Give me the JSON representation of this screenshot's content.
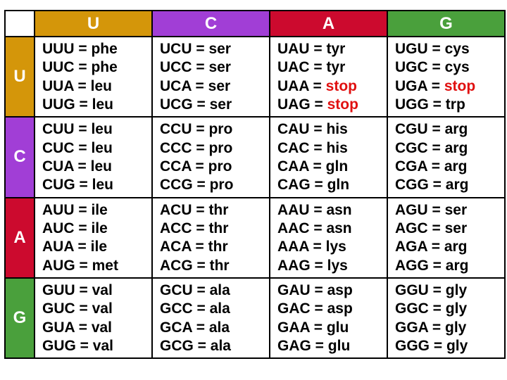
{
  "colors": {
    "U": "#d4960a",
    "C": "#a13ed6",
    "A": "#cc0a2e",
    "G": "#4aa03c",
    "stop": "#e01010"
  },
  "columns": [
    "U",
    "C",
    "A",
    "G"
  ],
  "rows": [
    "U",
    "C",
    "A",
    "G"
  ],
  "blocks": [
    [
      [
        {
          "codon": "UUU",
          "aa": "phe"
        },
        {
          "codon": "UUC",
          "aa": "phe"
        },
        {
          "codon": "UUA",
          "aa": "leu"
        },
        {
          "codon": "UUG",
          "aa": "leu"
        }
      ],
      [
        {
          "codon": "UCU",
          "aa": "ser"
        },
        {
          "codon": "UCC",
          "aa": "ser"
        },
        {
          "codon": "UCA",
          "aa": "ser"
        },
        {
          "codon": "UCG",
          "aa": "ser"
        }
      ],
      [
        {
          "codon": "UAU",
          "aa": "tyr"
        },
        {
          "codon": "UAC",
          "aa": "tyr"
        },
        {
          "codon": "UAA",
          "aa": "stop"
        },
        {
          "codon": "UAG",
          "aa": "stop"
        }
      ],
      [
        {
          "codon": "UGU",
          "aa": "cys"
        },
        {
          "codon": "UGC",
          "aa": "cys"
        },
        {
          "codon": "UGA",
          "aa": "stop"
        },
        {
          "codon": "UGG",
          "aa": "trp"
        }
      ]
    ],
    [
      [
        {
          "codon": "CUU",
          "aa": "leu"
        },
        {
          "codon": "CUC",
          "aa": "leu"
        },
        {
          "codon": "CUA",
          "aa": "leu"
        },
        {
          "codon": "CUG",
          "aa": "leu"
        }
      ],
      [
        {
          "codon": "CCU",
          "aa": "pro"
        },
        {
          "codon": "CCC",
          "aa": "pro"
        },
        {
          "codon": "CCA",
          "aa": "pro"
        },
        {
          "codon": "CCG",
          "aa": "pro"
        }
      ],
      [
        {
          "codon": "CAU",
          "aa": "his"
        },
        {
          "codon": "CAC",
          "aa": "his"
        },
        {
          "codon": "CAA",
          "aa": "gln"
        },
        {
          "codon": "CAG",
          "aa": "gln"
        }
      ],
      [
        {
          "codon": "CGU",
          "aa": "arg"
        },
        {
          "codon": "CGC",
          "aa": "arg"
        },
        {
          "codon": "CGA",
          "aa": "arg"
        },
        {
          "codon": "CGG",
          "aa": "arg"
        }
      ]
    ],
    [
      [
        {
          "codon": "AUU",
          "aa": "ile"
        },
        {
          "codon": "AUC",
          "aa": "ile"
        },
        {
          "codon": "AUA",
          "aa": "ile"
        },
        {
          "codon": "AUG",
          "aa": "met"
        }
      ],
      [
        {
          "codon": "ACU",
          "aa": "thr"
        },
        {
          "codon": "ACC",
          "aa": "thr"
        },
        {
          "codon": "ACA",
          "aa": "thr"
        },
        {
          "codon": "ACG",
          "aa": "thr"
        }
      ],
      [
        {
          "codon": "AAU",
          "aa": "asn"
        },
        {
          "codon": "AAC",
          "aa": "asn"
        },
        {
          "codon": "AAA",
          "aa": "lys"
        },
        {
          "codon": "AAG",
          "aa": "lys"
        }
      ],
      [
        {
          "codon": "AGU",
          "aa": "ser"
        },
        {
          "codon": "AGC",
          "aa": "ser"
        },
        {
          "codon": "AGA",
          "aa": "arg"
        },
        {
          "codon": "AGG",
          "aa": "arg"
        }
      ]
    ],
    [
      [
        {
          "codon": "GUU",
          "aa": "val"
        },
        {
          "codon": "GUC",
          "aa": "val"
        },
        {
          "codon": "GUA",
          "aa": "val"
        },
        {
          "codon": "GUG",
          "aa": "val"
        }
      ],
      [
        {
          "codon": "GCU",
          "aa": "ala"
        },
        {
          "codon": "GCC",
          "aa": "ala"
        },
        {
          "codon": "GCA",
          "aa": "ala"
        },
        {
          "codon": "GCG",
          "aa": "ala"
        }
      ],
      [
        {
          "codon": "GAU",
          "aa": "asp"
        },
        {
          "codon": "GAC",
          "aa": "asp"
        },
        {
          "codon": "GAA",
          "aa": "glu"
        },
        {
          "codon": "GAG",
          "aa": "glu"
        }
      ],
      [
        {
          "codon": "GGU",
          "aa": "gly"
        },
        {
          "codon": "GGC",
          "aa": "gly"
        },
        {
          "codon": "GGA",
          "aa": "gly"
        },
        {
          "codon": "GGG",
          "aa": "gly"
        }
      ]
    ]
  ]
}
